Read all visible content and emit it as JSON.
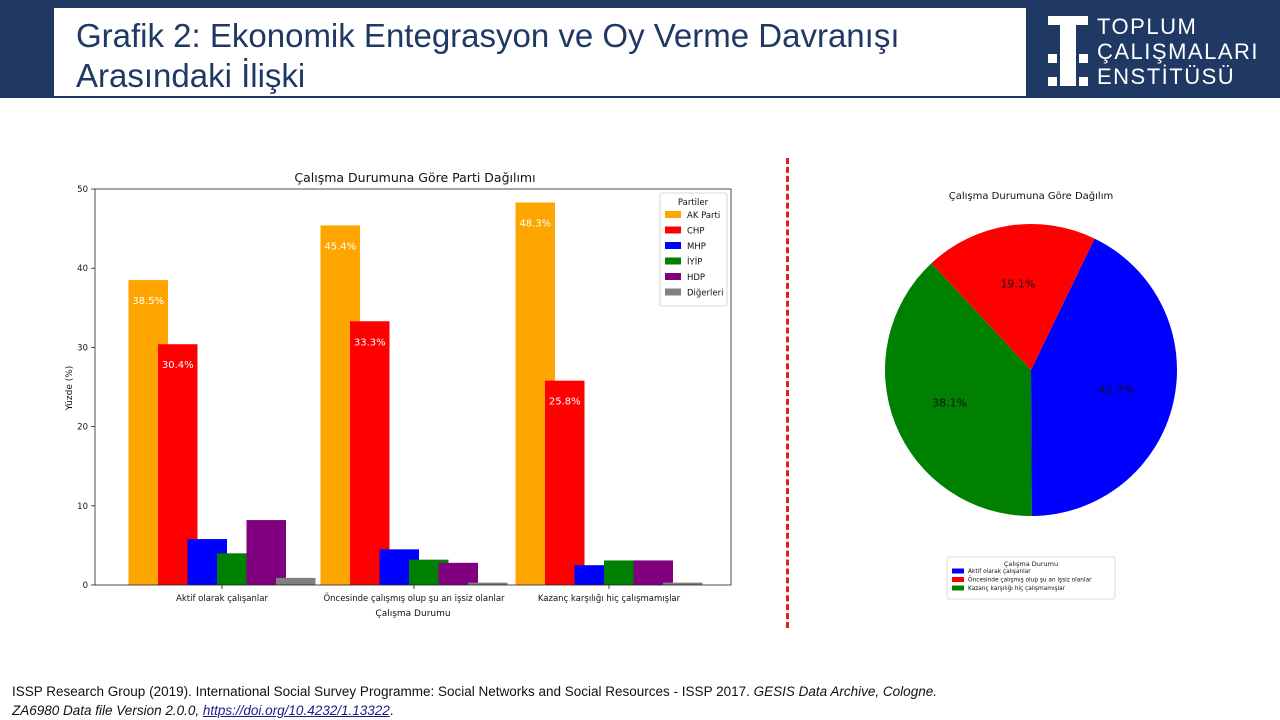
{
  "header": {
    "title": "Grafik 2: Ekonomik Entegrasyon ve Oy Verme Davranışı Arasındaki İlişki",
    "logo_lines": [
      "TOPLUM",
      "ÇALIŞMALARI",
      "ENSTİTÜSÜ"
    ]
  },
  "colors": {
    "header_bg": "#1f3864",
    "divider": "#e02020"
  },
  "source": {
    "line1": "ISSP Research Group (2019). International Social Survey Programme: Social Networks and Social Resources - ISSP 2017.",
    "line1_italic": "GESIS Data Archive, Cologne.",
    "line2_italic": "ZA6980 Data file Version 2.0.0,",
    "link": "https://doi.org/10.4232/1.13322",
    "line2_end": "."
  },
  "chart_data": [
    {
      "type": "bar",
      "title": "Çalışma Durumuna Göre Parti Dağılımı",
      "xlabel": "Çalışma Durumu",
      "ylabel": "Yüzde (%)",
      "ylim": [
        0,
        50
      ],
      "yticks": [
        0,
        10,
        20,
        30,
        40,
        50
      ],
      "categories": [
        "Aktif olarak çalışanlar",
        "Öncesinde çalışmış olup şu an işsiz olanlar",
        "Kazanç karşılığı hiç çalışmamışlar"
      ],
      "legend_title": "Partiler",
      "legend_position": "top-right",
      "series": [
        {
          "name": "AK Parti",
          "color": "#ffa500",
          "values": [
            38.5,
            45.4,
            48.3
          ],
          "labels": [
            "38.5%",
            "45.4%",
            "48.3%"
          ]
        },
        {
          "name": "CHP",
          "color": "#ff0000",
          "values": [
            30.4,
            33.3,
            25.8
          ],
          "labels": [
            "30.4%",
            "33.3%",
            "25.8%"
          ]
        },
        {
          "name": "MHP",
          "color": "#0000ff",
          "values": [
            5.8,
            4.5,
            2.5
          ]
        },
        {
          "name": "İYİP",
          "color": "#008000",
          "values": [
            4.0,
            3.2,
            3.1
          ]
        },
        {
          "name": "HDP",
          "color": "#800080",
          "values": [
            8.2,
            2.8,
            3.1
          ]
        },
        {
          "name": "Diğerleri",
          "color": "#808080",
          "values": [
            0.9,
            0.3,
            0.3
          ]
        }
      ]
    },
    {
      "type": "pie",
      "title": "Çalışma Durumuna Göre Dağılım",
      "legend_title": "Çalışma Durumu",
      "legend_position": "bottom",
      "slices": [
        {
          "label": "Kazanç karşılığı hiç çalışmamışlar",
          "value": 38.1,
          "text": "38.1%",
          "color": "#008000"
        },
        {
          "label": "Aktif olarak çalışanlar",
          "value": 42.7,
          "text": "42.7%",
          "color": "#0000ff"
        },
        {
          "label": "Öncesinde çalışmış olup şu an işsiz olanlar",
          "value": 19.1,
          "text": "19.1%",
          "color": "#ff0000"
        }
      ],
      "legend_order": [
        1,
        2,
        0
      ]
    }
  ]
}
